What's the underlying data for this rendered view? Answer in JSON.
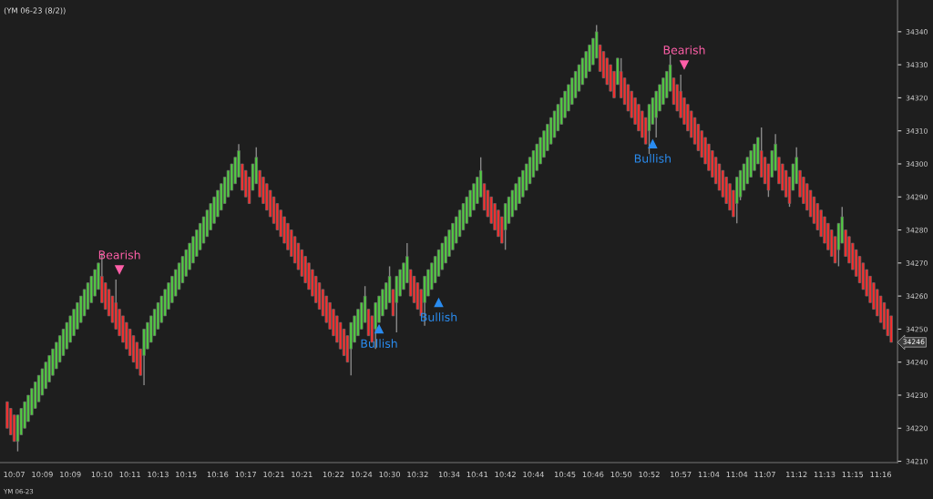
{
  "chart_data": {
    "type": "candlestick",
    "title": "(YM 06-23 (8/2))",
    "categories": [
      null,
      null,
      "10:07",
      null,
      null,
      null,
      null,
      null,
      null,
      null,
      "10:09",
      null,
      null,
      null,
      null,
      null,
      null,
      null,
      "10:09",
      null,
      null,
      null,
      null,
      null,
      null,
      null,
      null,
      "10:10",
      null,
      null,
      null,
      null,
      null,
      null,
      null,
      "10:11",
      null,
      null,
      null,
      null,
      null,
      null,
      null,
      "10:13",
      null,
      null,
      null,
      null,
      null,
      null,
      null,
      "10:15",
      null,
      null,
      null,
      null,
      null,
      null,
      null,
      null,
      "10:16",
      null,
      null,
      null,
      null,
      null,
      null,
      null,
      "10:17",
      null,
      null,
      null,
      null,
      null,
      null,
      null,
      "10:21",
      null,
      null,
      null,
      null,
      null,
      null,
      null,
      "10:21",
      null,
      null,
      null,
      null,
      null,
      null,
      null,
      null,
      "10:22",
      null,
      null,
      null,
      null,
      null,
      null,
      null,
      "10:24",
      null,
      null,
      null,
      null,
      null,
      null,
      null,
      "10:30",
      null,
      null,
      null,
      null,
      null,
      null,
      null,
      "10:32",
      null,
      null,
      null,
      null,
      null,
      null,
      null,
      null,
      "10:34",
      null,
      null,
      null,
      null,
      null,
      null,
      null,
      "10:41",
      null,
      null,
      null,
      null,
      null,
      null,
      null,
      "10:42",
      null,
      null,
      null,
      null,
      null,
      null,
      null,
      "10:44",
      null,
      null,
      null,
      null,
      null,
      null,
      null,
      null,
      "10:45",
      null,
      null,
      null,
      null,
      null,
      null,
      null,
      "10:46",
      null,
      null,
      null,
      null,
      null,
      null,
      null,
      "10:50",
      null,
      null,
      null,
      null,
      null,
      null,
      null,
      "10:52",
      null,
      null,
      null,
      null,
      null,
      null,
      null,
      null,
      "10:57",
      null,
      null,
      null,
      null,
      null,
      null,
      null,
      "11:04",
      null,
      null,
      null,
      null,
      null,
      null,
      null,
      "11:04",
      null,
      null,
      null,
      null,
      null,
      null,
      null,
      "11:07",
      null,
      null,
      null,
      null,
      null,
      null,
      null,
      null,
      "11:12",
      null,
      null,
      null,
      null,
      null,
      null,
      null,
      "11:13",
      null,
      null,
      null,
      null,
      null,
      null,
      null,
      "11:15",
      null,
      null,
      null,
      null,
      null,
      null,
      null,
      "11:16",
      null,
      null,
      null
    ],
    "ohlc": [
      [
        34228,
        34228,
        34220,
        34220
      ],
      [
        34226,
        34226,
        34218,
        34218
      ],
      [
        34224,
        34224,
        34216,
        34216
      ],
      [
        34216,
        34224,
        34213,
        34224
      ],
      [
        34218,
        34226,
        34218,
        34226
      ],
      [
        34220,
        34228,
        34220,
        34228
      ],
      [
        34222,
        34230,
        34222,
        34230
      ],
      [
        34224,
        34232,
        34224,
        34232
      ],
      [
        34226,
        34234,
        34226,
        34234
      ],
      [
        34228,
        34236,
        34228,
        34236
      ],
      [
        34230,
        34238,
        34230,
        34238
      ],
      [
        34232,
        34240,
        34232,
        34240
      ],
      [
        34234,
        34242,
        34234,
        34242
      ],
      [
        34236,
        34244,
        34236,
        34244
      ],
      [
        34238,
        34246,
        34238,
        34246
      ],
      [
        34240,
        34248,
        34240,
        34248
      ],
      [
        34242,
        34250,
        34242,
        34250
      ],
      [
        34244,
        34252,
        34244,
        34252
      ],
      [
        34246,
        34254,
        34246,
        34254
      ],
      [
        34248,
        34256,
        34248,
        34256
      ],
      [
        34250,
        34258,
        34250,
        34258
      ],
      [
        34252,
        34260,
        34252,
        34260
      ],
      [
        34254,
        34262,
        34254,
        34262
      ],
      [
        34256,
        34264,
        34256,
        34264
      ],
      [
        34258,
        34266,
        34258,
        34266
      ],
      [
        34260,
        34268,
        34260,
        34268
      ],
      [
        34262,
        34270,
        34262,
        34270
      ],
      [
        34266,
        34273,
        34258,
        34258
      ],
      [
        34264,
        34264,
        34256,
        34256
      ],
      [
        34262,
        34262,
        34254,
        34254
      ],
      [
        34260,
        34260,
        34252,
        34252
      ],
      [
        34258,
        34265,
        34250,
        34250
      ],
      [
        34256,
        34256,
        34248,
        34248
      ],
      [
        34254,
        34254,
        34246,
        34246
      ],
      [
        34252,
        34252,
        34244,
        34244
      ],
      [
        34250,
        34250,
        34242,
        34242
      ],
      [
        34248,
        34248,
        34240,
        34240
      ],
      [
        34246,
        34246,
        34238,
        34238
      ],
      [
        34244,
        34244,
        34236,
        34236
      ],
      [
        34242,
        34250,
        34233,
        34250
      ],
      [
        34244,
        34252,
        34244,
        34252
      ],
      [
        34246,
        34254,
        34246,
        34254
      ],
      [
        34248,
        34256,
        34248,
        34256
      ],
      [
        34250,
        34258,
        34250,
        34258
      ],
      [
        34252,
        34260,
        34252,
        34260
      ],
      [
        34254,
        34262,
        34254,
        34262
      ],
      [
        34256,
        34264,
        34256,
        34264
      ],
      [
        34258,
        34266,
        34258,
        34266
      ],
      [
        34260,
        34268,
        34260,
        34268
      ],
      [
        34262,
        34270,
        34262,
        34270
      ],
      [
        34264,
        34272,
        34264,
        34272
      ],
      [
        34266,
        34274,
        34266,
        34274
      ],
      [
        34268,
        34276,
        34268,
        34276
      ],
      [
        34270,
        34278,
        34270,
        34278
      ],
      [
        34272,
        34280,
        34272,
        34280
      ],
      [
        34274,
        34282,
        34274,
        34282
      ],
      [
        34276,
        34284,
        34276,
        34284
      ],
      [
        34278,
        34286,
        34278,
        34286
      ],
      [
        34280,
        34288,
        34280,
        34288
      ],
      [
        34282,
        34290,
        34282,
        34290
      ],
      [
        34284,
        34292,
        34284,
        34292
      ],
      [
        34286,
        34294,
        34286,
        34294
      ],
      [
        34288,
        34296,
        34288,
        34296
      ],
      [
        34290,
        34298,
        34290,
        34298
      ],
      [
        34292,
        34300,
        34292,
        34300
      ],
      [
        34294,
        34302,
        34294,
        34302
      ],
      [
        34296,
        34306,
        34296,
        34304
      ],
      [
        34300,
        34300,
        34292,
        34292
      ],
      [
        34298,
        34298,
        34290,
        34290
      ],
      [
        34296,
        34296,
        34288,
        34288
      ],
      [
        34292,
        34300,
        34292,
        34300
      ],
      [
        34294,
        34305,
        34294,
        34302
      ],
      [
        34298,
        34298,
        34290,
        34290
      ],
      [
        34296,
        34296,
        34288,
        34288
      ],
      [
        34294,
        34294,
        34286,
        34286
      ],
      [
        34292,
        34292,
        34284,
        34284
      ],
      [
        34290,
        34290,
        34282,
        34282
      ],
      [
        34288,
        34288,
        34280,
        34280
      ],
      [
        34286,
        34286,
        34278,
        34278
      ],
      [
        34284,
        34284,
        34276,
        34276
      ],
      [
        34282,
        34282,
        34274,
        34274
      ],
      [
        34280,
        34280,
        34272,
        34272
      ],
      [
        34278,
        34278,
        34270,
        34270
      ],
      [
        34276,
        34276,
        34268,
        34268
      ],
      [
        34274,
        34274,
        34266,
        34266
      ],
      [
        34272,
        34272,
        34264,
        34264
      ],
      [
        34270,
        34270,
        34262,
        34262
      ],
      [
        34268,
        34268,
        34260,
        34260
      ],
      [
        34266,
        34266,
        34258,
        34258
      ],
      [
        34264,
        34264,
        34256,
        34256
      ],
      [
        34262,
        34262,
        34254,
        34254
      ],
      [
        34260,
        34260,
        34252,
        34252
      ],
      [
        34258,
        34258,
        34250,
        34250
      ],
      [
        34256,
        34256,
        34248,
        34248
      ],
      [
        34254,
        34254,
        34246,
        34246
      ],
      [
        34252,
        34252,
        34244,
        34244
      ],
      [
        34250,
        34250,
        34242,
        34242
      ],
      [
        34248,
        34248,
        34240,
        34240
      ],
      [
        34244,
        34252,
        34236,
        34252
      ],
      [
        34246,
        34254,
        34246,
        34254
      ],
      [
        34248,
        34256,
        34248,
        34256
      ],
      [
        34250,
        34258,
        34250,
        34258
      ],
      [
        34252,
        34263,
        34252,
        34260
      ],
      [
        34256,
        34256,
        34248,
        34248
      ],
      [
        34254,
        34254,
        34246,
        34246
      ],
      [
        34250,
        34258,
        34244,
        34258
      ],
      [
        34252,
        34260,
        34252,
        34260
      ],
      [
        34254,
        34262,
        34254,
        34262
      ],
      [
        34256,
        34264,
        34256,
        34264
      ],
      [
        34258,
        34269,
        34258,
        34266
      ],
      [
        34262,
        34262,
        34254,
        34254
      ],
      [
        34258,
        34266,
        34249,
        34266
      ],
      [
        34260,
        34268,
        34260,
        34268
      ],
      [
        34262,
        34270,
        34262,
        34270
      ],
      [
        34264,
        34276,
        34264,
        34272
      ],
      [
        34268,
        34268,
        34260,
        34260
      ],
      [
        34266,
        34266,
        34258,
        34258
      ],
      [
        34264,
        34264,
        34256,
        34256
      ],
      [
        34262,
        34262,
        34254,
        34254
      ],
      [
        34258,
        34266,
        34251,
        34266
      ],
      [
        34260,
        34268,
        34260,
        34268
      ],
      [
        34262,
        34270,
        34262,
        34270
      ],
      [
        34264,
        34272,
        34264,
        34272
      ],
      [
        34266,
        34274,
        34266,
        34274
      ],
      [
        34268,
        34276,
        34268,
        34276
      ],
      [
        34270,
        34278,
        34270,
        34278
      ],
      [
        34272,
        34280,
        34272,
        34280
      ],
      [
        34274,
        34282,
        34274,
        34282
      ],
      [
        34276,
        34284,
        34276,
        34284
      ],
      [
        34278,
        34286,
        34278,
        34286
      ],
      [
        34280,
        34288,
        34280,
        34288
      ],
      [
        34282,
        34290,
        34282,
        34290
      ],
      [
        34284,
        34292,
        34284,
        34292
      ],
      [
        34286,
        34294,
        34286,
        34294
      ],
      [
        34288,
        34296,
        34288,
        34296
      ],
      [
        34290,
        34302,
        34290,
        34298
      ],
      [
        34294,
        34294,
        34286,
        34286
      ],
      [
        34292,
        34292,
        34284,
        34284
      ],
      [
        34290,
        34290,
        34282,
        34282
      ],
      [
        34288,
        34288,
        34280,
        34280
      ],
      [
        34286,
        34286,
        34278,
        34278
      ],
      [
        34284,
        34284,
        34276,
        34276
      ],
      [
        34280,
        34288,
        34274,
        34288
      ],
      [
        34282,
        34290,
        34282,
        34290
      ],
      [
        34284,
        34292,
        34284,
        34292
      ],
      [
        34286,
        34294,
        34286,
        34294
      ],
      [
        34288,
        34296,
        34288,
        34296
      ],
      [
        34290,
        34298,
        34290,
        34298
      ],
      [
        34292,
        34300,
        34292,
        34300
      ],
      [
        34294,
        34302,
        34294,
        34302
      ],
      [
        34296,
        34304,
        34296,
        34304
      ],
      [
        34298,
        34306,
        34298,
        34306
      ],
      [
        34300,
        34308,
        34300,
        34308
      ],
      [
        34302,
        34310,
        34302,
        34310
      ],
      [
        34304,
        34312,
        34304,
        34312
      ],
      [
        34306,
        34314,
        34306,
        34314
      ],
      [
        34308,
        34316,
        34308,
        34316
      ],
      [
        34310,
        34318,
        34310,
        34318
      ],
      [
        34312,
        34320,
        34312,
        34320
      ],
      [
        34314,
        34322,
        34314,
        34322
      ],
      [
        34316,
        34324,
        34316,
        34324
      ],
      [
        34318,
        34326,
        34318,
        34326
      ],
      [
        34320,
        34328,
        34320,
        34328
      ],
      [
        34322,
        34330,
        34322,
        34330
      ],
      [
        34324,
        34332,
        34324,
        34332
      ],
      [
        34326,
        34334,
        34326,
        34334
      ],
      [
        34328,
        34336,
        34328,
        34336
      ],
      [
        34330,
        34338,
        34330,
        34338
      ],
      [
        34332,
        34342,
        34332,
        34340
      ],
      [
        34336,
        34336,
        34328,
        34328
      ],
      [
        34334,
        34334,
        34326,
        34326
      ],
      [
        34332,
        34332,
        34324,
        34324
      ],
      [
        34330,
        34330,
        34322,
        34322
      ],
      [
        34328,
        34328,
        34320,
        34320
      ],
      [
        34324,
        34332,
        34324,
        34332
      ],
      [
        34328,
        34332,
        34320,
        34320
      ],
      [
        34326,
        34326,
        34318,
        34318
      ],
      [
        34324,
        34324,
        34316,
        34316
      ],
      [
        34322,
        34322,
        34314,
        34314
      ],
      [
        34320,
        34320,
        34312,
        34312
      ],
      [
        34318,
        34318,
        34310,
        34310
      ],
      [
        34316,
        34316,
        34308,
        34308
      ],
      [
        34314,
        34314,
        34306,
        34306
      ],
      [
        34310,
        34318,
        34303,
        34318
      ],
      [
        34312,
        34320,
        34312,
        34320
      ],
      [
        34314,
        34322,
        34308,
        34322
      ],
      [
        34316,
        34324,
        34316,
        34324
      ],
      [
        34318,
        34326,
        34318,
        34326
      ],
      [
        34320,
        34328,
        34320,
        34328
      ],
      [
        34322,
        34333,
        34322,
        34330
      ],
      [
        34326,
        34326,
        34318,
        34318
      ],
      [
        34324,
        34324,
        34316,
        34316
      ],
      [
        34322,
        34327,
        34314,
        34314
      ],
      [
        34320,
        34320,
        34312,
        34312
      ],
      [
        34318,
        34318,
        34310,
        34310
      ],
      [
        34316,
        34316,
        34308,
        34308
      ],
      [
        34314,
        34314,
        34306,
        34306
      ],
      [
        34312,
        34312,
        34304,
        34304
      ],
      [
        34310,
        34310,
        34302,
        34302
      ],
      [
        34308,
        34308,
        34300,
        34300
      ],
      [
        34306,
        34306,
        34298,
        34298
      ],
      [
        34304,
        34304,
        34296,
        34296
      ],
      [
        34302,
        34302,
        34294,
        34294
      ],
      [
        34300,
        34300,
        34292,
        34292
      ],
      [
        34298,
        34298,
        34290,
        34290
      ],
      [
        34296,
        34296,
        34288,
        34288
      ],
      [
        34294,
        34294,
        34286,
        34286
      ],
      [
        34292,
        34292,
        34284,
        34284
      ],
      [
        34288,
        34296,
        34282,
        34296
      ],
      [
        34290,
        34298,
        34289,
        34298
      ],
      [
        34292,
        34300,
        34292,
        34300
      ],
      [
        34294,
        34302,
        34294,
        34302
      ],
      [
        34296,
        34304,
        34296,
        34304
      ],
      [
        34298,
        34306,
        34298,
        34306
      ],
      [
        34300,
        34308,
        34300,
        34308
      ],
      [
        34304,
        34311,
        34296,
        34296
      ],
      [
        34302,
        34302,
        34294,
        34294
      ],
      [
        34300,
        34300,
        34290,
        34292
      ],
      [
        34296,
        34304,
        34296,
        34304
      ],
      [
        34298,
        34309,
        34298,
        34306
      ],
      [
        34302,
        34302,
        34294,
        34294
      ],
      [
        34300,
        34300,
        34292,
        34292
      ],
      [
        34298,
        34298,
        34290,
        34290
      ],
      [
        34296,
        34296,
        34287,
        34288
      ],
      [
        34292,
        34300,
        34292,
        34300
      ],
      [
        34294,
        34305,
        34294,
        34302
      ],
      [
        34298,
        34298,
        34290,
        34290
      ],
      [
        34296,
        34296,
        34288,
        34288
      ],
      [
        34294,
        34294,
        34286,
        34286
      ],
      [
        34292,
        34292,
        34284,
        34284
      ],
      [
        34290,
        34290,
        34282,
        34282
      ],
      [
        34288,
        34288,
        34280,
        34280
      ],
      [
        34286,
        34286,
        34278,
        34278
      ],
      [
        34284,
        34284,
        34276,
        34276
      ],
      [
        34282,
        34282,
        34274,
        34274
      ],
      [
        34280,
        34280,
        34272,
        34272
      ],
      [
        34278,
        34278,
        34270,
        34270
      ],
      [
        34274,
        34282,
        34269,
        34282
      ],
      [
        34276,
        34287,
        34276,
        34284
      ],
      [
        34280,
        34280,
        34272,
        34272
      ],
      [
        34278,
        34278,
        34270,
        34270
      ],
      [
        34276,
        34276,
        34268,
        34268
      ],
      [
        34274,
        34274,
        34266,
        34266
      ],
      [
        34272,
        34272,
        34264,
        34264
      ],
      [
        34270,
        34270,
        34262,
        34262
      ],
      [
        34268,
        34268,
        34260,
        34260
      ],
      [
        34266,
        34266,
        34258,
        34258
      ],
      [
        34264,
        34264,
        34256,
        34256
      ],
      [
        34262,
        34262,
        34254,
        34254
      ],
      [
        34260,
        34260,
        34252,
        34252
      ],
      [
        34258,
        34258,
        34250,
        34250
      ],
      [
        34256,
        34256,
        34248,
        34248
      ],
      [
        34254,
        34254,
        34246,
        34246
      ]
    ],
    "ylim": [
      34209.6,
      34349.6
    ],
    "yticks": [
      34210,
      34220,
      34230,
      34240,
      34250,
      34260,
      34270,
      34280,
      34290,
      34300,
      34310,
      34320,
      34330,
      34340
    ],
    "annotations": [
      {
        "text": "Bearish",
        "y": 34268
      },
      {
        "text": "Bullish",
        "y": 34250
      },
      {
        "text": "Bullish",
        "y": 34258
      },
      {
        "text": "Bullish",
        "y": 34306
      },
      {
        "text": "Bearish",
        "y": 34330
      },
      "YM 06-23",
      "34246"
    ],
    "grid": false,
    "legend": false
  }
}
